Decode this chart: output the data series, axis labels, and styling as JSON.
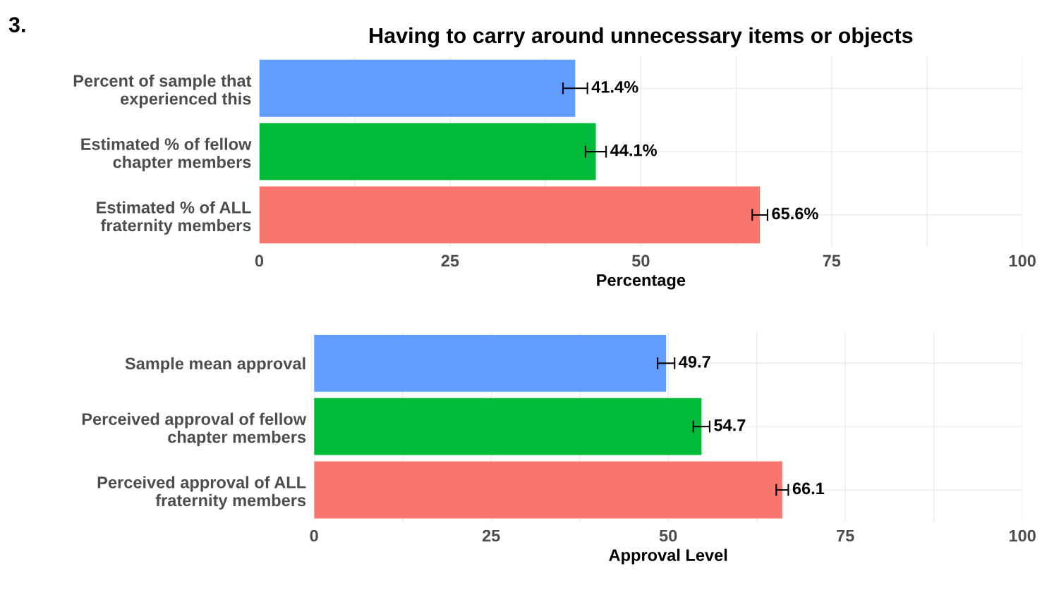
{
  "chart_data": [
    {
      "type": "bar",
      "orientation": "horizontal",
      "title": "Having to carry around unnecessary items or objects",
      "annotations": [
        "3."
      ],
      "xlabel": "Percentage",
      "categories": [
        "Percent of sample that\nexperienced this",
        "Estimated % of fellow\nchapter members",
        "Estimated % of ALL\nfraternity members"
      ],
      "values": [
        41.4,
        44.1,
        65.6
      ],
      "colors": [
        "#619cff",
        "#00ba38",
        "#f8766d"
      ],
      "errors": [
        1.6,
        1.35,
        1.0
      ],
      "value_labels": [
        "41.4%",
        "44.1%",
        "65.6%"
      ],
      "xlim": [
        0,
        100
      ],
      "xticks": [
        0,
        {
          "value": 12.5,
          "label": null
        },
        25,
        {
          "value": 37.5,
          "label": null
        },
        50,
        {
          "value": 62.5,
          "label": null
        },
        75,
        {
          "value": 87.5,
          "label": null
        },
        100
      ],
      "grid": true
    },
    {
      "type": "bar",
      "orientation": "horizontal",
      "xlabel": "Approval Level",
      "categories": [
        "Sample mean approval",
        "Perceived approval of fellow\nchapter members",
        "Perceived approval of ALL\nfraternity members"
      ],
      "values": [
        49.7,
        54.7,
        66.1
      ],
      "colors": [
        "#619cff",
        "#00ba38",
        "#f8766d"
      ],
      "errors": [
        1.2,
        1.15,
        0.85
      ],
      "data_labels": true,
      "xlim": [
        0,
        100
      ],
      "xticks": [
        0,
        {
          "value": 12.5,
          "label": null
        },
        25,
        {
          "value": 37.5,
          "label": null
        },
        50,
        {
          "value": 62.5,
          "label": null
        },
        75,
        {
          "value": 87.5,
          "label": null
        },
        100
      ],
      "grid": true
    }
  ]
}
